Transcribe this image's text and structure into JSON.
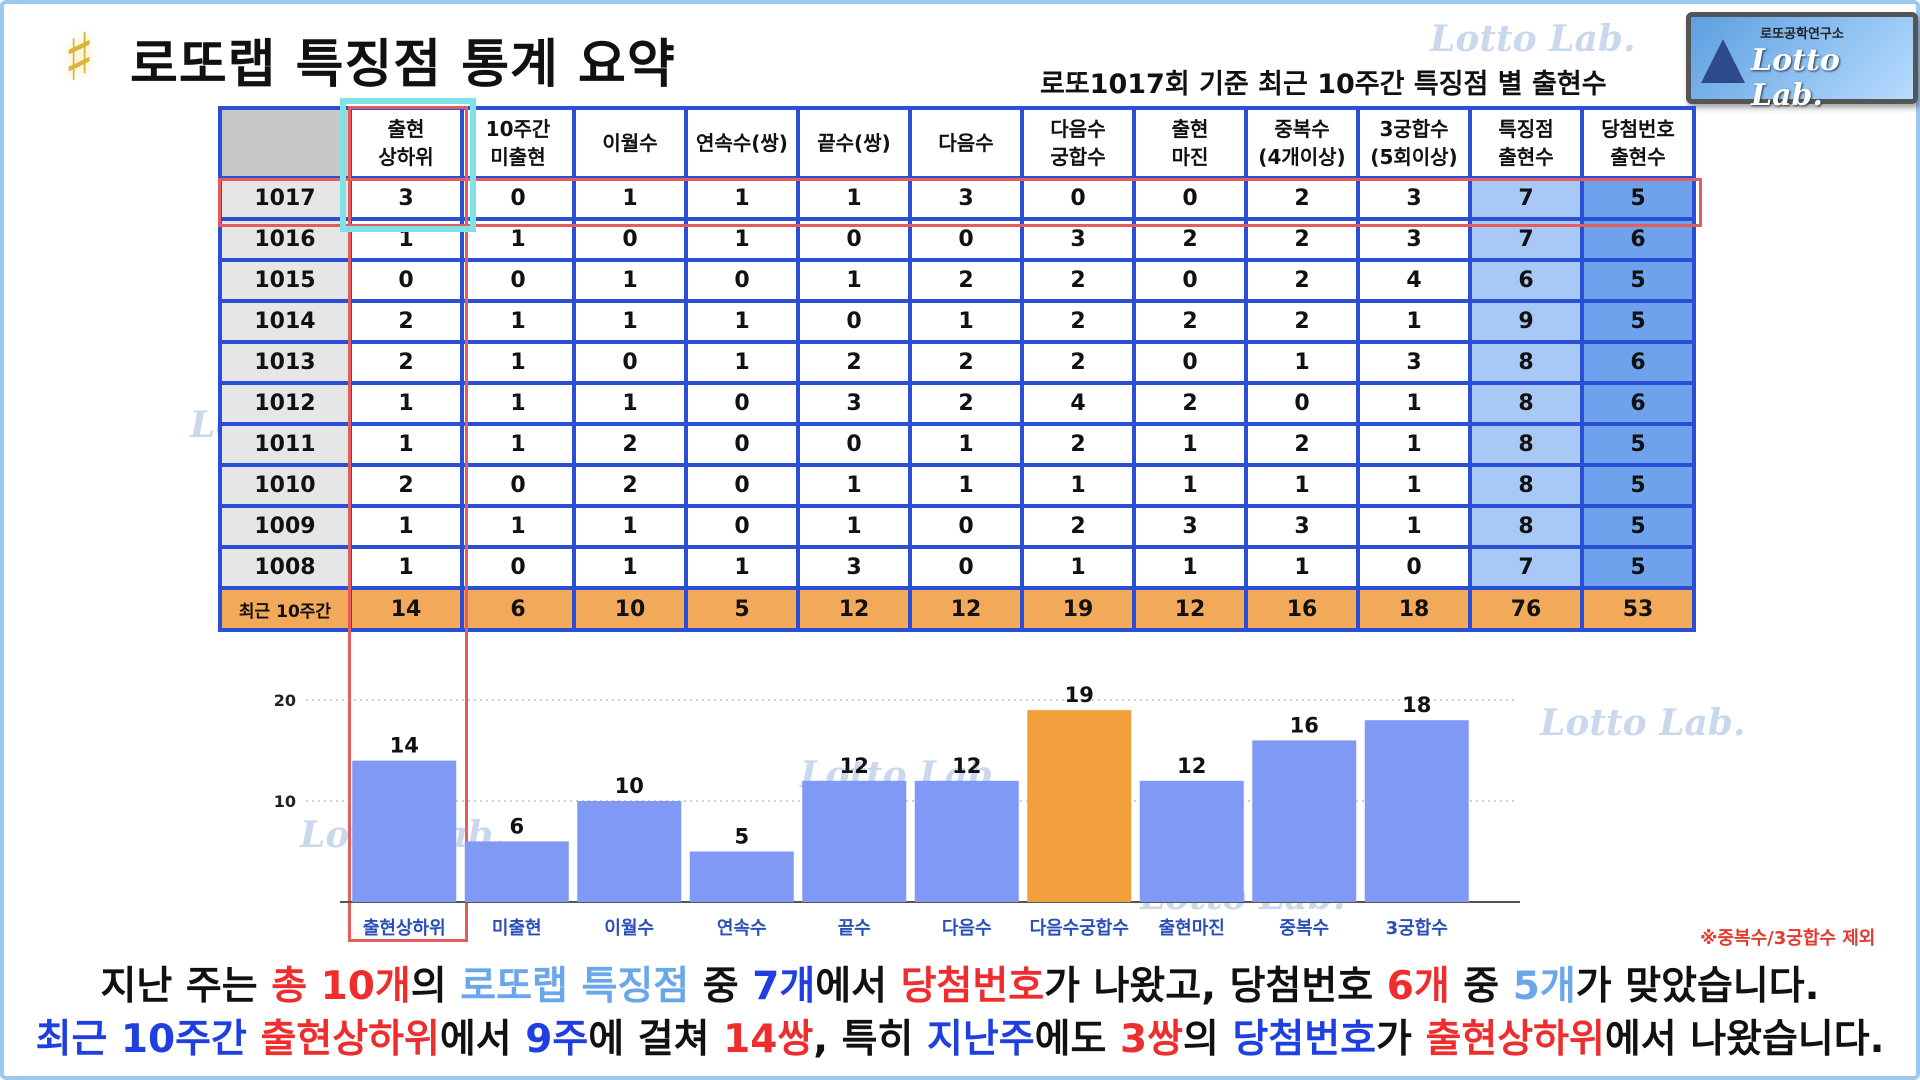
{
  "title": "로또랩 특징점 통계 요약",
  "subtitle": "로또1017회 기준 최근 10주간 특징점 별 출현수",
  "brand": {
    "top": "로또공학연구소",
    "name": "Lotto Lab."
  },
  "watermark": "Lotto Lab.",
  "table": {
    "headers": [
      "출현\n상하위",
      "10주간\n미출현",
      "이월수",
      "연속수(쌍)",
      "끝수(쌍)",
      "다음수",
      "다음수\n궁합수",
      "출현\n마진",
      "중복수\n(4개이상)",
      "3궁합수\n(5회이상)",
      "특징점\n출현수",
      "당첨번호\n출현수"
    ],
    "rows": [
      {
        "round": "1017",
        "values": [
          "3",
          "0",
          "1",
          "1",
          "1",
          "3",
          "0",
          "0",
          "2",
          "3",
          "7",
          "5"
        ]
      },
      {
        "round": "1016",
        "values": [
          "1",
          "1",
          "0",
          "1",
          "0",
          "0",
          "3",
          "2",
          "2",
          "3",
          "7",
          "6"
        ]
      },
      {
        "round": "1015",
        "values": [
          "0",
          "0",
          "1",
          "0",
          "1",
          "2",
          "2",
          "0",
          "2",
          "4",
          "6",
          "5"
        ]
      },
      {
        "round": "1014",
        "values": [
          "2",
          "1",
          "1",
          "1",
          "0",
          "1",
          "2",
          "2",
          "2",
          "1",
          "9",
          "5"
        ]
      },
      {
        "round": "1013",
        "values": [
          "2",
          "1",
          "0",
          "1",
          "2",
          "2",
          "2",
          "0",
          "1",
          "3",
          "8",
          "6"
        ]
      },
      {
        "round": "1012",
        "values": [
          "1",
          "1",
          "1",
          "0",
          "3",
          "2",
          "4",
          "2",
          "0",
          "1",
          "8",
          "6"
        ]
      },
      {
        "round": "1011",
        "values": [
          "1",
          "1",
          "2",
          "0",
          "0",
          "1",
          "2",
          "1",
          "2",
          "1",
          "8",
          "5"
        ]
      },
      {
        "round": "1010",
        "values": [
          "2",
          "0",
          "2",
          "0",
          "1",
          "1",
          "1",
          "1",
          "1",
          "1",
          "8",
          "5"
        ]
      },
      {
        "round": "1009",
        "values": [
          "1",
          "1",
          "1",
          "0",
          "1",
          "0",
          "2",
          "3",
          "3",
          "1",
          "8",
          "5"
        ]
      },
      {
        "round": "1008",
        "values": [
          "1",
          "0",
          "1",
          "1",
          "3",
          "0",
          "1",
          "1",
          "1",
          "0",
          "7",
          "5"
        ]
      }
    ],
    "total": {
      "label": "최근 10주간",
      "values": [
        "14",
        "6",
        "10",
        "5",
        "12",
        "12",
        "19",
        "12",
        "16",
        "18",
        "76",
        "53"
      ]
    }
  },
  "chart_data": {
    "type": "bar",
    "categories": [
      "출현상하위",
      "미출현",
      "이월수",
      "연속수",
      "끝수",
      "다음수",
      "다음수궁합수",
      "출현마진",
      "중복수",
      "3궁합수"
    ],
    "values": [
      14,
      6,
      10,
      5,
      12,
      12,
      19,
      12,
      16,
      18
    ],
    "ylim": [
      0,
      20
    ],
    "yticks": [
      10,
      20
    ],
    "highlight_index": 6,
    "highlight_color": "#f2a03d",
    "bar_color": "#8099f4",
    "grid": "dotted horizontal",
    "xlabel": "",
    "ylabel": "",
    "title": ""
  },
  "note": "※중복수/3궁합수 제외",
  "summary": {
    "line1": [
      {
        "t": "지난 주는 ",
        "c": ""
      },
      {
        "t": "총 10개",
        "c": "r"
      },
      {
        "t": "의 ",
        "c": ""
      },
      {
        "t": "로또랩 특징점",
        "c": "lb"
      },
      {
        "t": " 중 ",
        "c": ""
      },
      {
        "t": "7개",
        "c": "b"
      },
      {
        "t": "에서 ",
        "c": ""
      },
      {
        "t": "당첨번호",
        "c": "r"
      },
      {
        "t": "가 나왔고, 당첨번호 ",
        "c": ""
      },
      {
        "t": "6개",
        "c": "r"
      },
      {
        "t": " 중 ",
        "c": ""
      },
      {
        "t": "5개",
        "c": "lb"
      },
      {
        "t": "가 맞았습니다.",
        "c": ""
      }
    ],
    "line2": [
      {
        "t": "최근 10주간 ",
        "c": "b"
      },
      {
        "t": "출현상하위",
        "c": "r"
      },
      {
        "t": "에서 ",
        "c": ""
      },
      {
        "t": "9주",
        "c": "b"
      },
      {
        "t": "에 걸쳐 ",
        "c": ""
      },
      {
        "t": "14쌍",
        "c": "r"
      },
      {
        "t": ", 특히 ",
        "c": ""
      },
      {
        "t": "지난주",
        "c": "b"
      },
      {
        "t": "에도 ",
        "c": ""
      },
      {
        "t": "3쌍",
        "c": "r"
      },
      {
        "t": "의 ",
        "c": ""
      },
      {
        "t": "당첨번호",
        "c": "b"
      },
      {
        "t": "가 ",
        "c": ""
      },
      {
        "t": "출현상하위",
        "c": "r"
      },
      {
        "t": "에서 나왔습니다.",
        "c": ""
      }
    ]
  },
  "colors": {
    "table_border": "#2a4fd6",
    "total_row": "#f3a95a",
    "highlight_red": "#e45c5c",
    "highlight_cyan": "#7ee2e6"
  }
}
